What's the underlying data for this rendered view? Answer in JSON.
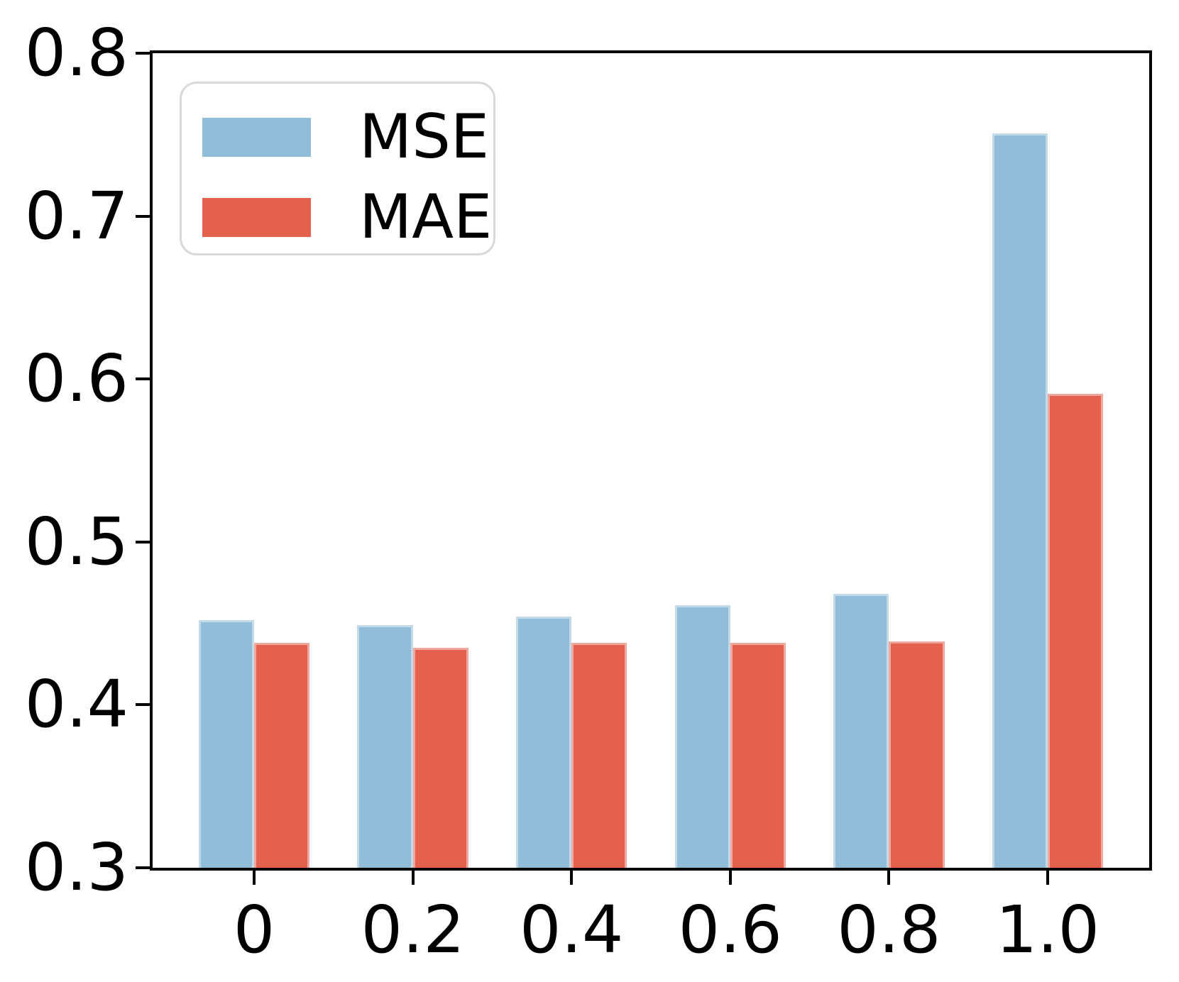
{
  "chart_data": {
    "type": "bar",
    "title": "",
    "xlabel": "",
    "ylabel": "",
    "categories": [
      "0",
      "0.2",
      "0.4",
      "0.6",
      "0.8",
      "1.0"
    ],
    "series": [
      {
        "name": "MSE",
        "color": "#92bdd8",
        "values": [
          0.452,
          0.449,
          0.454,
          0.461,
          0.468,
          0.751
        ]
      },
      {
        "name": "MAE",
        "color": "#e5614f",
        "values": [
          0.438,
          0.435,
          0.438,
          0.438,
          0.439,
          0.591
        ]
      }
    ],
    "ylim": [
      0.3,
      0.8
    ],
    "ytick_labels": [
      "0.3",
      "0.4",
      "0.5",
      "0.6",
      "0.7",
      "0.8"
    ],
    "bar_width_units": 0.35,
    "grid": false,
    "legend_position": "upper left",
    "axis_color": "#000000",
    "background_color": "#ffffff"
  }
}
